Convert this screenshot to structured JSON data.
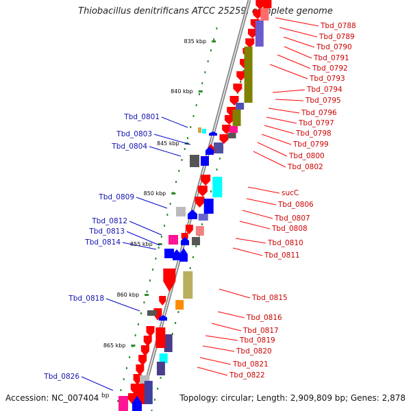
{
  "title": "Thiobacillus denitrificans ATCC 25259, complete genome",
  "footer": {
    "accession": "Accession: NC_007404",
    "bp_unit": "bp",
    "topology": "Topology: circular; Length: 2,909,809 bp; Genes: 2,878"
  },
  "colors": {
    "backbone": "#8a8a8a",
    "scale_dots": "#2e8b2e",
    "left_labels": "#1010b0",
    "right_labels": "#cc0000",
    "leader_left": "#0000cc",
    "leader_right": "#ff0000",
    "gene_red": "#ff0000",
    "gene_blue": "#0000ff",
    "olive": "#808000",
    "purple": "#3a2e8a",
    "cyan": "#00ffff",
    "magenta": "#ff1493",
    "grey": "#555555",
    "light_grey": "#bbbbbb",
    "orange": "#ff8c00",
    "khaki": "#b8b060",
    "pink": "#f08080"
  },
  "scale_labels": [
    "835 kbp",
    "840 kbp",
    "845 kbp",
    "850 kbp",
    "855 kbp",
    "860 kbp",
    "865 kbp"
  ],
  "left_genes": [
    "Tbd_0801",
    "Tbd_0803",
    "Tbd_0804",
    "Tbd_0809",
    "Tbd_0812",
    "Tbd_0813",
    "Tbd_0814",
    "Tbd_0818",
    "Tbd_0826"
  ],
  "right_genes": [
    "Tbd_0788",
    "Tbd_0789",
    "Tbd_0790",
    "Tbd_0791",
    "Tbd_0792",
    "Tbd_0793",
    "Tbd_0794",
    "Tbd_0795",
    "Tbd_0796",
    "Tbd_0797",
    "Tbd_0798",
    "Tbd_0799",
    "Tbd_0800",
    "Tbd_0802",
    "sucC",
    "Tbd_0806",
    "Tbd_0807",
    "Tbd_0808",
    "Tbd_0810",
    "Tbd_0811",
    "Tbd_0815",
    "Tbd_0816",
    "Tbd_0817",
    "Tbd_0819",
    "Tbd_0820",
    "Tbd_0821",
    "Tbd_0822"
  ]
}
